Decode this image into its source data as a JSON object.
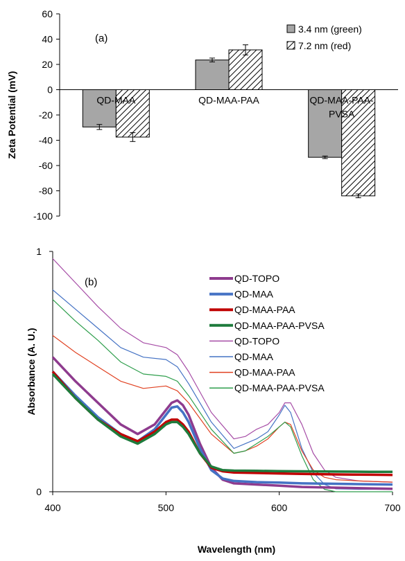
{
  "chart_data": [
    {
      "type": "bar",
      "panel_label": "(a)",
      "title": "",
      "xlabel": "",
      "ylabel": "Zeta Potential (mV)",
      "ylim": [
        -100,
        60
      ],
      "yticks": [
        60,
        40,
        20,
        0,
        -20,
        -40,
        -60,
        -80,
        -100
      ],
      "categories": [
        "QD-MAA",
        "QD-MAA-PAA",
        "QD-MAA-PAA-\nPVSA"
      ],
      "category_labels": [
        [
          "QD-MAA"
        ],
        [
          "QD-MAA-PAA"
        ],
        [
          "QD-MAA-PAA-",
          "PVSA"
        ]
      ],
      "series": [
        {
          "name": "3.4 nm (green)",
          "fill": "solid-gray",
          "color": "#a6a6a6",
          "values": [
            -29.5,
            23.5,
            -53.5
          ],
          "errors": [
            2,
            1.5,
            1
          ]
        },
        {
          "name": "7.2 nm (red)",
          "fill": "hatched",
          "color": "#ffffff",
          "values": [
            -37.5,
            31.5,
            -84
          ],
          "errors": [
            3.5,
            4,
            1.5
          ]
        }
      ],
      "grid": false,
      "legend_position": "top-right"
    },
    {
      "type": "line",
      "panel_label": "(b)",
      "title": "",
      "xlabel": "Wavelength (nm)",
      "ylabel": "Absorbance (A. U.)",
      "xlim": [
        400,
        700
      ],
      "ylim": [
        0,
        1
      ],
      "xticks": [
        400,
        500,
        600,
        700
      ],
      "yticks": [
        0,
        1
      ],
      "grid": false,
      "legend_position": "top-right",
      "series": [
        {
          "name": "QD-TOPO",
          "color": "#8e3b8e",
          "width": "thick",
          "x": [
            400,
            420,
            440,
            460,
            475,
            490,
            500,
            505,
            510,
            515,
            520,
            530,
            540,
            550,
            560,
            580,
            600,
            620,
            650,
            680,
            700
          ],
          "y": [
            0.56,
            0.46,
            0.37,
            0.28,
            0.24,
            0.28,
            0.34,
            0.37,
            0.38,
            0.36,
            0.32,
            0.2,
            0.1,
            0.05,
            0.035,
            0.03,
            0.025,
            0.02,
            0.017,
            0.014,
            0.012
          ]
        },
        {
          "name": "QD-MAA",
          "color": "#4472c4",
          "width": "thick",
          "x": [
            400,
            420,
            440,
            460,
            475,
            490,
            500,
            505,
            510,
            515,
            520,
            530,
            540,
            550,
            560,
            580,
            600,
            620,
            650,
            680,
            700
          ],
          "y": [
            0.5,
            0.4,
            0.31,
            0.24,
            0.21,
            0.26,
            0.32,
            0.35,
            0.355,
            0.33,
            0.29,
            0.18,
            0.09,
            0.055,
            0.045,
            0.04,
            0.038,
            0.035,
            0.033,
            0.031,
            0.03
          ]
        },
        {
          "name": "QD-MAA-PAA",
          "color": "#c00000",
          "width": "thick",
          "x": [
            400,
            420,
            440,
            460,
            475,
            490,
            500,
            505,
            510,
            515,
            520,
            530,
            540,
            550,
            560,
            580,
            600,
            620,
            650,
            680,
            700
          ],
          "y": [
            0.5,
            0.39,
            0.3,
            0.24,
            0.21,
            0.25,
            0.29,
            0.3,
            0.3,
            0.28,
            0.25,
            0.16,
            0.1,
            0.085,
            0.08,
            0.078,
            0.076,
            0.074,
            0.072,
            0.071,
            0.07
          ]
        },
        {
          "name": "QD-MAA-PAA-PVSA",
          "color": "#1e7b3c",
          "width": "thick",
          "x": [
            400,
            420,
            440,
            460,
            475,
            490,
            500,
            505,
            510,
            515,
            520,
            530,
            540,
            550,
            560,
            580,
            600,
            620,
            650,
            680,
            700
          ],
          "y": [
            0.49,
            0.39,
            0.3,
            0.23,
            0.2,
            0.24,
            0.28,
            0.29,
            0.29,
            0.27,
            0.24,
            0.16,
            0.105,
            0.09,
            0.088,
            0.087,
            0.086,
            0.085,
            0.084,
            0.083,
            0.083
          ]
        },
        {
          "name": "QD-TOPO",
          "color": "#a64ca6",
          "width": "thin",
          "x": [
            400,
            420,
            440,
            460,
            480,
            500,
            510,
            520,
            540,
            560,
            570,
            580,
            590,
            600,
            605,
            610,
            620,
            630,
            640,
            650,
            670,
            700
          ],
          "y": [
            0.97,
            0.87,
            0.77,
            0.68,
            0.62,
            0.6,
            0.57,
            0.5,
            0.33,
            0.22,
            0.23,
            0.26,
            0.28,
            0.33,
            0.37,
            0.37,
            0.28,
            0.16,
            0.09,
            0.06,
            0.045,
            0.04
          ]
        },
        {
          "name": "QD-MAA",
          "color": "#4472c4",
          "width": "thin",
          "x": [
            400,
            420,
            440,
            460,
            480,
            500,
            510,
            520,
            540,
            560,
            570,
            580,
            590,
            600,
            605,
            610,
            620,
            630,
            640,
            650,
            670,
            700
          ],
          "y": [
            0.84,
            0.76,
            0.68,
            0.6,
            0.56,
            0.55,
            0.52,
            0.45,
            0.29,
            0.18,
            0.2,
            0.22,
            0.25,
            0.32,
            0.36,
            0.33,
            0.18,
            0.08,
            0.03,
            0.012,
            0.01,
            0.01
          ]
        },
        {
          "name": "QD-MAA-PAA",
          "color": "#e04020",
          "width": "thin",
          "x": [
            400,
            420,
            440,
            460,
            480,
            500,
            510,
            520,
            540,
            560,
            570,
            580,
            590,
            600,
            605,
            610,
            620,
            630,
            640,
            650,
            670,
            700
          ],
          "y": [
            0.65,
            0.58,
            0.52,
            0.46,
            0.43,
            0.44,
            0.42,
            0.37,
            0.24,
            0.16,
            0.17,
            0.19,
            0.22,
            0.27,
            0.29,
            0.28,
            0.17,
            0.09,
            0.06,
            0.05,
            0.045,
            0.04
          ]
        },
        {
          "name": "QD-MAA-PAA-PVSA",
          "color": "#2e9e4c",
          "width": "thin",
          "x": [
            400,
            420,
            440,
            460,
            480,
            500,
            510,
            520,
            540,
            560,
            570,
            580,
            590,
            600,
            605,
            610,
            620,
            630,
            640,
            650,
            670,
            700
          ],
          "y": [
            0.8,
            0.71,
            0.63,
            0.54,
            0.49,
            0.48,
            0.46,
            0.4,
            0.26,
            0.16,
            0.17,
            0.2,
            0.23,
            0.27,
            0.29,
            0.27,
            0.15,
            0.05,
            0.01,
            0.0,
            0.0,
            0.0
          ]
        }
      ]
    }
  ]
}
